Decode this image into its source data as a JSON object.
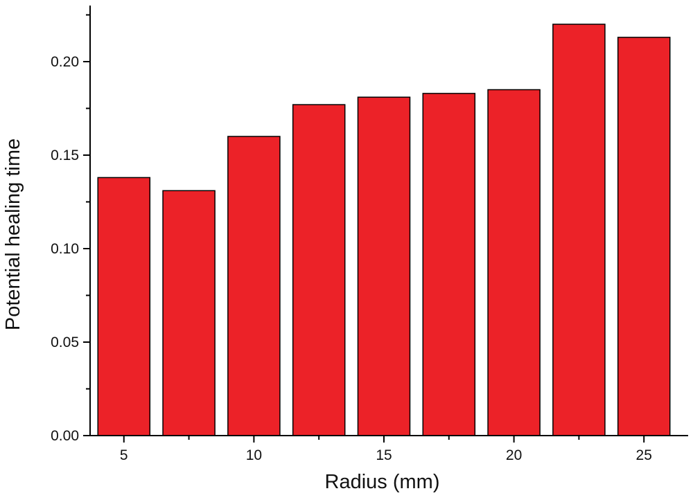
{
  "chart_data": {
    "type": "bar",
    "title": "",
    "xlabel": "Radius (mm)",
    "ylabel": "Potential healing time",
    "x": [
      5,
      7.5,
      10,
      12.5,
      15,
      17.5,
      20,
      22.5,
      25
    ],
    "values": [
      0.138,
      0.131,
      0.16,
      0.177,
      0.181,
      0.183,
      0.185,
      0.22,
      0.213
    ],
    "ylim": [
      0,
      0.23
    ],
    "xlim": [
      3.7,
      26.7
    ],
    "x_ticks": [
      "5",
      "10",
      "15",
      "20",
      "25"
    ],
    "x_tick_values": [
      5,
      10,
      15,
      20,
      25
    ],
    "y_ticks": [
      "0.00",
      "0.05",
      "0.10",
      "0.15",
      "0.20"
    ],
    "y_tick_values": [
      0,
      0.05,
      0.1,
      0.15,
      0.2
    ],
    "bar_color": "#ec2228",
    "grid": false,
    "legend": "none"
  }
}
